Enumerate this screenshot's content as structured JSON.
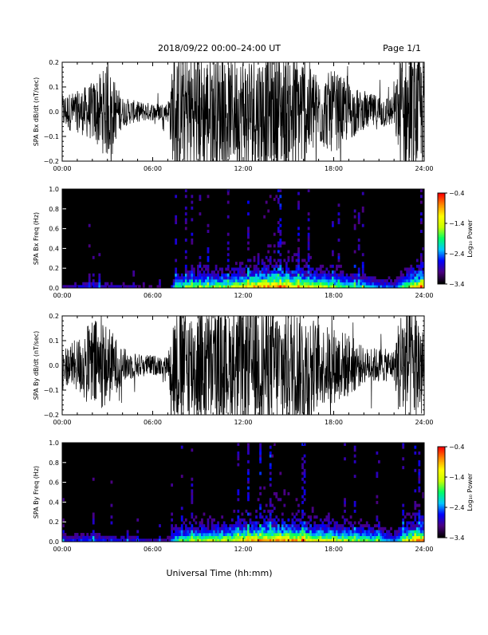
{
  "header": {
    "title": "2018/09/22  00:00–24:00 UT",
    "page_label": "Page 1/1"
  },
  "footer": {
    "xlabel": "Universal Time (hh:mm)"
  },
  "chart_data": [
    {
      "type": "line",
      "ylabel": "SPA Bx dB/dt (nT/sec)",
      "xlim": [
        0,
        24
      ],
      "ylim": [
        -0.2,
        0.2
      ],
      "xtick_labels": [
        "00:00",
        "06:00",
        "12:00",
        "18:00",
        "24:00"
      ],
      "ytick_labels": [
        "0.2",
        "0.1",
        "0.0",
        "−0.1",
        "−0.2"
      ],
      "color": "#000000",
      "envelope": {
        "x": [
          0,
          1,
          2,
          3,
          4,
          5,
          6,
          7,
          7.4,
          8,
          9,
          10,
          11,
          12,
          13,
          14,
          15,
          16,
          17,
          18,
          19,
          20,
          21,
          22,
          22.4,
          23,
          24
        ],
        "amplitude": [
          0.06,
          0.07,
          0.1,
          0.16,
          0.05,
          0.035,
          0.03,
          0.03,
          0.2,
          0.2,
          0.2,
          0.2,
          0.17,
          0.2,
          0.2,
          0.2,
          0.2,
          0.2,
          0.12,
          0.14,
          0.1,
          0.06,
          0.06,
          0.05,
          0.2,
          0.2,
          0.2
        ]
      }
    },
    {
      "type": "heatmap",
      "ylabel": "SPA Bx Freq (Hz)",
      "xlim": [
        0,
        24
      ],
      "ylim": [
        0,
        1
      ],
      "xtick_labels": [
        "00:00",
        "06:00",
        "12:00",
        "18:00",
        "24:00"
      ],
      "ytick_labels": [
        "1.0",
        "0.8",
        "0.6",
        "0.4",
        "0.2",
        "0.0"
      ],
      "colorbar": {
        "label": "Log₁₀ Power",
        "range": [
          -3.4,
          -0.4
        ],
        "tick_labels": [
          "−0.4",
          "−1.4",
          "−2.4",
          "−3.4"
        ],
        "colors": [
          "#000000",
          "#4b0082",
          "#0000ff",
          "#00c8ff",
          "#00ff64",
          "#c8ff00",
          "#ffff00",
          "#ff8c00",
          "#ff0000"
        ]
      },
      "activity": {
        "x": [
          0,
          2,
          4,
          6,
          7.2,
          7.5,
          9,
          11,
          12,
          13,
          14,
          15,
          16,
          17,
          18,
          19,
          20,
          21,
          22,
          23,
          24
        ],
        "level": [
          0.25,
          0.3,
          0.25,
          0.2,
          0.2,
          0.55,
          0.6,
          0.65,
          0.75,
          0.85,
          0.9,
          0.85,
          0.75,
          0.7,
          0.6,
          0.55,
          0.5,
          0.4,
          0.35,
          0.7,
          0.9
        ]
      }
    },
    {
      "type": "line",
      "ylabel": "SPA By dB/dt (nT/sec)",
      "xlim": [
        0,
        24
      ],
      "ylim": [
        -0.2,
        0.2
      ],
      "xtick_labels": [
        "00:00",
        "06:00",
        "12:00",
        "18:00",
        "24:00"
      ],
      "ytick_labels": [
        "0.2",
        "0.1",
        "0.0",
        "−0.1",
        "−0.2"
      ],
      "color": "#000000",
      "envelope": {
        "x": [
          0,
          1,
          2,
          3,
          4,
          5,
          6,
          7,
          7.4,
          8,
          9,
          10,
          11,
          12,
          13,
          14,
          15,
          16,
          17,
          18,
          19,
          20,
          21,
          22,
          22.4,
          23,
          24
        ],
        "amplitude": [
          0.06,
          0.09,
          0.16,
          0.14,
          0.06,
          0.04,
          0.035,
          0.03,
          0.2,
          0.2,
          0.2,
          0.2,
          0.17,
          0.2,
          0.2,
          0.2,
          0.2,
          0.2,
          0.14,
          0.13,
          0.11,
          0.06,
          0.06,
          0.05,
          0.2,
          0.2,
          0.2
        ]
      }
    },
    {
      "type": "heatmap",
      "ylabel": "SPA By Freq (Hz)",
      "xlim": [
        0,
        24
      ],
      "ylim": [
        0,
        1
      ],
      "xtick_labels": [
        "00:00",
        "06:00",
        "12:00",
        "18:00",
        "24:00"
      ],
      "ytick_labels": [
        "1.0",
        "0.8",
        "0.6",
        "0.4",
        "0.2",
        "0.0"
      ],
      "colorbar": {
        "label": "Log₁₀ Power",
        "range": [
          -3.4,
          -0.4
        ],
        "tick_labels": [
          "−0.4",
          "−1.4",
          "−2.4",
          "−3.4"
        ],
        "colors": [
          "#000000",
          "#4b0082",
          "#0000ff",
          "#00c8ff",
          "#00ff64",
          "#c8ff00",
          "#ffff00",
          "#ff8c00",
          "#ff0000"
        ]
      },
      "activity": {
        "x": [
          0,
          2,
          4,
          6,
          7.2,
          7.5,
          9,
          11,
          12,
          13,
          14,
          15,
          16,
          17,
          18,
          19,
          20,
          21,
          22,
          23,
          24
        ],
        "level": [
          0.3,
          0.35,
          0.3,
          0.25,
          0.25,
          0.55,
          0.65,
          0.7,
          0.75,
          0.85,
          0.9,
          0.85,
          0.8,
          0.75,
          0.7,
          0.65,
          0.6,
          0.5,
          0.4,
          0.75,
          0.9
        ]
      }
    }
  ]
}
